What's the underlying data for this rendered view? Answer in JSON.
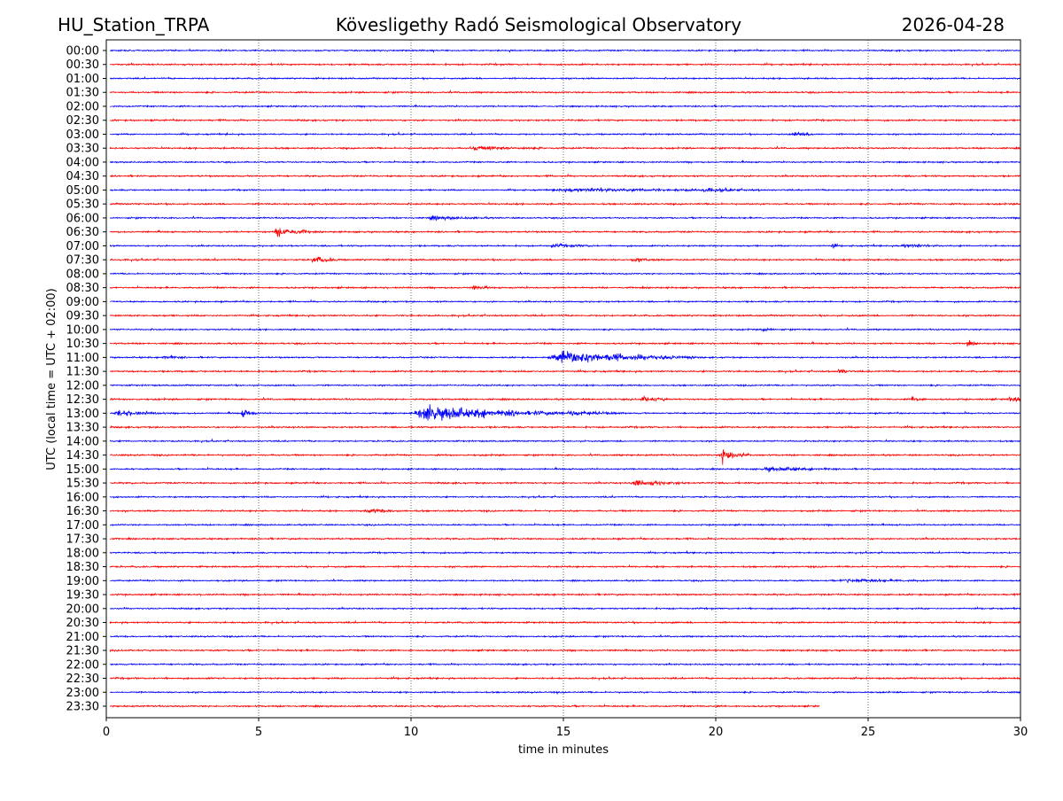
{
  "chart_data": {
    "type": "line",
    "title_left": "HU_Station_TRPA",
    "title_center": "Kövesligethy Radó Seismological Observatory",
    "title_right": "2026-04-28",
    "xlabel": "time in minutes",
    "ylabel": "UTC (local time = UTC + 02:00)",
    "xlim": [
      0,
      30
    ],
    "xticks": [
      0,
      5,
      10,
      15,
      20,
      25,
      30
    ],
    "grid_x": true,
    "colors": [
      "#0000ff",
      "#ff0000"
    ],
    "traces": [
      "00:00",
      "00:30",
      "01:00",
      "01:30",
      "02:00",
      "02:30",
      "03:00",
      "03:30",
      "04:00",
      "04:30",
      "05:00",
      "05:30",
      "06:00",
      "06:30",
      "07:00",
      "07:30",
      "08:00",
      "08:30",
      "09:00",
      "09:30",
      "10:00",
      "10:30",
      "11:00",
      "11:30",
      "12:00",
      "12:30",
      "13:00",
      "13:30",
      "14:00",
      "14:30",
      "15:00",
      "15:30",
      "16:00",
      "16:30",
      "17:00",
      "17:30",
      "18:00",
      "18:30",
      "19:00",
      "19:30",
      "20:00",
      "20:30",
      "21:00",
      "21:30",
      "22:00",
      "22:30",
      "23:00",
      "23:30"
    ],
    "last_trace_end_minute": 23.4,
    "events": [
      {
        "trace": "03:00",
        "start": 22.5,
        "duration": 1.0,
        "amplitude": 4
      },
      {
        "trace": "03:30",
        "start": 11.8,
        "duration": 3.0,
        "amplitude": 3
      },
      {
        "trace": "05:00",
        "start": 14.5,
        "duration": 7.0,
        "amplitude": 3
      },
      {
        "trace": "05:00",
        "start": 19.5,
        "duration": 1.5,
        "amplitude": 3
      },
      {
        "trace": "06:00",
        "start": 10.5,
        "duration": 2.0,
        "amplitude": 3
      },
      {
        "trace": "06:30",
        "start": 5.5,
        "duration": 1.2,
        "amplitude": 10
      },
      {
        "trace": "07:00",
        "start": 14.5,
        "duration": 1.5,
        "amplitude": 3
      },
      {
        "trace": "07:00",
        "start": 23.8,
        "duration": 0.2,
        "amplitude": 8
      },
      {
        "trace": "07:00",
        "start": 26.0,
        "duration": 1.5,
        "amplitude": 3
      },
      {
        "trace": "07:30",
        "start": 6.7,
        "duration": 1.0,
        "amplitude": 6
      },
      {
        "trace": "07:30",
        "start": 17.2,
        "duration": 1.0,
        "amplitude": 3
      },
      {
        "trace": "08:30",
        "start": 12.0,
        "duration": 0.6,
        "amplitude": 4
      },
      {
        "trace": "10:00",
        "start": 21.5,
        "duration": 0.5,
        "amplitude": 4
      },
      {
        "trace": "10:30",
        "start": 28.2,
        "duration": 0.5,
        "amplitude": 4
      },
      {
        "trace": "11:00",
        "start": 1.8,
        "duration": 0.8,
        "amplitude": 4
      },
      {
        "trace": "11:00",
        "start": 14.5,
        "duration": 4.8,
        "amplitude": 12
      },
      {
        "trace": "11:30",
        "start": 24.0,
        "duration": 0.4,
        "amplitude": 6
      },
      {
        "trace": "12:30",
        "start": 17.5,
        "duration": 1.0,
        "amplitude": 5
      },
      {
        "trace": "12:30",
        "start": 26.4,
        "duration": 0.5,
        "amplitude": 6
      },
      {
        "trace": "12:30",
        "start": 29.6,
        "duration": 0.4,
        "amplitude": 8
      },
      {
        "trace": "13:00",
        "start": 0.2,
        "duration": 1.8,
        "amplitude": 5
      },
      {
        "trace": "13:00",
        "start": 4.4,
        "duration": 0.6,
        "amplitude": 8
      },
      {
        "trace": "13:00",
        "start": 10.0,
        "duration": 5.0,
        "amplitude": 15
      },
      {
        "trace": "13:00",
        "start": 15.0,
        "duration": 2.0,
        "amplitude": 5
      },
      {
        "trace": "14:30",
        "start": 20.1,
        "duration": 1.0,
        "amplitude": 15
      },
      {
        "trace": "15:00",
        "start": 21.5,
        "duration": 2.5,
        "amplitude": 4
      },
      {
        "trace": "15:30",
        "start": 17.2,
        "duration": 1.8,
        "amplitude": 6
      },
      {
        "trace": "16:30",
        "start": 8.5,
        "duration": 1.3,
        "amplitude": 4
      },
      {
        "trace": "19:00",
        "start": 24.0,
        "duration": 3.0,
        "amplitude": 3
      }
    ]
  }
}
